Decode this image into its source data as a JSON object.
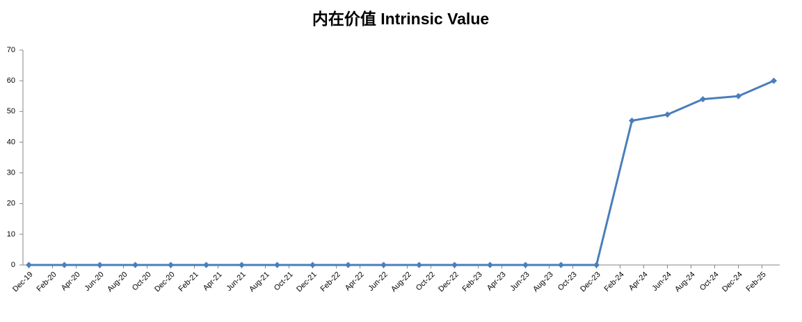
{
  "chart_data": {
    "type": "line",
    "title": "内在价值 Intrinsic Value",
    "x": [
      0,
      3,
      6,
      9,
      12,
      15,
      18,
      21,
      24,
      27,
      30,
      33,
      36,
      39,
      42,
      45,
      48,
      51,
      54,
      57,
      60,
      63
    ],
    "xlim": [
      -0.5,
      63.5
    ],
    "xticks": [
      {
        "value": 0,
        "label": "Dec-19"
      },
      {
        "value": 2,
        "label": "Feb-20"
      },
      {
        "value": 4,
        "label": "Apr-20"
      },
      {
        "value": 6,
        "label": "Jun-20"
      },
      {
        "value": 8,
        "label": "Aug-20"
      },
      {
        "value": 10,
        "label": "Oct-20"
      },
      {
        "value": 12,
        "label": "Dec-20"
      },
      {
        "value": 14,
        "label": "Feb-21"
      },
      {
        "value": 16,
        "label": "Apr-21"
      },
      {
        "value": 18,
        "label": "Jun-21"
      },
      {
        "value": 20,
        "label": "Aug-21"
      },
      {
        "value": 22,
        "label": "Oct-21"
      },
      {
        "value": 24,
        "label": "Dec-21"
      },
      {
        "value": 26,
        "label": "Feb-22"
      },
      {
        "value": 28,
        "label": "Apr-22"
      },
      {
        "value": 30,
        "label": "Jun-22"
      },
      {
        "value": 32,
        "label": "Aug-22"
      },
      {
        "value": 34,
        "label": "Oct-22"
      },
      {
        "value": 36,
        "label": "Dec-22"
      },
      {
        "value": 38,
        "label": "Feb-23"
      },
      {
        "value": 40,
        "label": "Apr-23"
      },
      {
        "value": 42,
        "label": "Jun-23"
      },
      {
        "value": 44,
        "label": "Aug-23"
      },
      {
        "value": 46,
        "label": "Oct-23"
      },
      {
        "value": 48,
        "label": "Dec-23"
      },
      {
        "value": 50,
        "label": "Feb-24"
      },
      {
        "value": 52,
        "label": "Apr-24"
      },
      {
        "value": 54,
        "label": "Jun-24"
      },
      {
        "value": 56,
        "label": "Aug-24"
      },
      {
        "value": 58,
        "label": "Oct-24"
      },
      {
        "value": 60,
        "label": "Dec-24"
      },
      {
        "value": 62,
        "label": "Feb-25"
      }
    ],
    "series": [
      {
        "color": "#4a7ebb",
        "values": [
          0,
          0,
          0,
          0,
          0,
          0,
          0,
          0,
          0,
          0,
          0,
          0,
          0,
          0,
          0,
          0,
          0,
          47,
          49,
          54,
          55,
          60
        ]
      }
    ],
    "ylim": [
      0,
      70
    ],
    "yticks": [
      0,
      10,
      20,
      30,
      40,
      50,
      60,
      70
    ],
    "grid": false
  }
}
